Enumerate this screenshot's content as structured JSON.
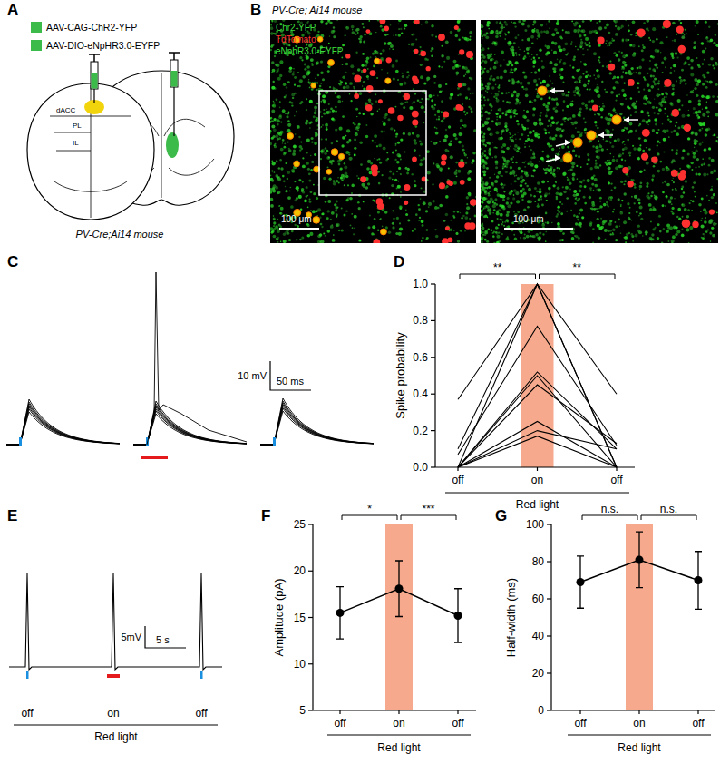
{
  "panel_labels": [
    "A",
    "B",
    "C",
    "D",
    "E",
    "F",
    "G"
  ],
  "schematic": {
    "injections": [
      {
        "label": "AAV-CAG-ChR2-YFP",
        "color": "#3dbb4a"
      },
      {
        "label": "AAV-DIO-eNpHR3.0-EYFP",
        "color": "#3dbb4a"
      }
    ],
    "regions": [
      "dACC",
      "PL",
      "IL"
    ],
    "caption": "PV-Cre;Ai14 mouse"
  },
  "micrograph": {
    "title": "PV-Cre; Ai14 mouse",
    "channels": [
      {
        "name": "Chr2-YFP",
        "color": "#3ddc3d"
      },
      {
        "name": "TdTomato",
        "color": "#ff3030"
      },
      {
        "name": "eNphR3.0-EYFP",
        "color": "#3ddc3d"
      }
    ],
    "scale_bars": [
      "100 μm",
      "100 μm"
    ]
  },
  "traces_c": {
    "scale_bar": {
      "voltage": "10 mV",
      "time": "50 ms"
    }
  },
  "trace_e": {
    "scale_bar": {
      "voltage": "5mV",
      "time": "5 s"
    },
    "conditions": [
      "off",
      "on",
      "off"
    ],
    "label": "Red light"
  },
  "chart_data": [
    {
      "type": "line",
      "categories": [
        "off",
        "on",
        "off"
      ],
      "xlabel": "Red light",
      "ylabel": "Spike probability",
      "ylim": [
        0,
        1
      ],
      "yticks": [
        {
          "value": 0,
          "label": "0.0"
        },
        0.2,
        0.4,
        0.6,
        0.8,
        {
          "value": 1,
          "label": "1.0"
        }
      ],
      "color": "#000000",
      "series": [
        {
          "values": [
            0.37,
            1.0,
            0.4
          ]
        },
        {
          "values": [
            0.1,
            1.0,
            0.0
          ]
        },
        {
          "values": [
            0.07,
            0.77,
            0.12
          ]
        },
        {
          "values": [
            0.0,
            0.52,
            0.1
          ]
        },
        {
          "values": [
            0.0,
            0.5,
            0.0
          ]
        },
        {
          "values": [
            0.0,
            0.45,
            0.13
          ]
        },
        {
          "values": [
            0.0,
            0.25,
            0.0
          ]
        },
        {
          "values": [
            0.0,
            0.2,
            0.1
          ]
        },
        {
          "values": [
            0.0,
            0.17,
            0.0
          ]
        },
        {
          "values": [
            0.0,
            1.0,
            0.0
          ]
        }
      ],
      "annotations": [
        {
          "text": "**",
          "between": [
            0,
            1
          ]
        },
        {
          "text": "**",
          "between": [
            1,
            2
          ]
        }
      ]
    },
    {
      "type": "line",
      "categories": [
        "off",
        "on",
        "off"
      ],
      "xlabel": "Red light",
      "ylabel": "Amplitude (pA)",
      "ylim": [
        5,
        25
      ],
      "yticks": [
        5,
        10,
        15,
        20,
        25
      ],
      "series": [
        {
          "values": [
            15.5,
            18.1,
            15.2
          ],
          "errors": [
            2.8,
            3.0,
            2.9
          ],
          "color": "#000000",
          "marker": "circle"
        }
      ],
      "annotations": [
        {
          "text": "*",
          "between": [
            0,
            1
          ]
        },
        {
          "text": "***",
          "between": [
            1,
            2
          ]
        }
      ]
    },
    {
      "type": "line",
      "categories": [
        "off",
        "on",
        "off"
      ],
      "xlabel": "Red light",
      "ylabel": "Half-width (ms)",
      "ylim": [
        0,
        100
      ],
      "yticks": [
        0,
        20,
        40,
        60,
        80,
        100
      ],
      "series": [
        {
          "values": [
            69,
            81,
            70
          ],
          "errors": [
            14,
            15,
            15.5
          ],
          "color": "#000000",
          "marker": "circle"
        }
      ],
      "annotations": [
        {
          "text": "n.s.",
          "between": [
            0,
            1
          ]
        },
        {
          "text": "n.s.",
          "between": [
            1,
            2
          ]
        }
      ]
    }
  ]
}
